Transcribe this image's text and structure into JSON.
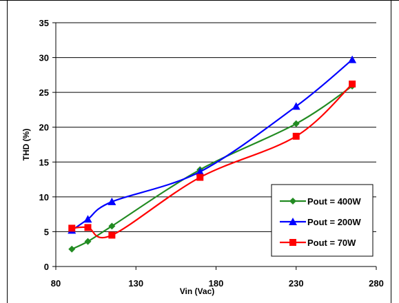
{
  "chart_data": {
    "type": "line",
    "title": "",
    "xlabel": "Vin (Vac)",
    "ylabel": "THD (%)",
    "xlim": [
      80,
      280
    ],
    "ylim": [
      0,
      35
    ],
    "xticks": [
      80,
      130,
      180,
      230,
      280
    ],
    "yticks": [
      0,
      5,
      10,
      15,
      20,
      25,
      30,
      35
    ],
    "grid": "horizontal",
    "legend_position": "bottom-right",
    "series": [
      {
        "name": "Pout = 400W",
        "color": "#228b22",
        "marker": "diamond",
        "x": [
          90,
          100,
          115,
          170,
          230,
          265
        ],
        "y": [
          2.5,
          3.6,
          5.8,
          13.9,
          20.5,
          25.9
        ]
      },
      {
        "name": "Pout = 200W",
        "color": "#0000ff",
        "marker": "triangle",
        "x": [
          90,
          100,
          115,
          170,
          230,
          265
        ],
        "y": [
          5.2,
          6.8,
          9.3,
          13.6,
          23.0,
          29.7
        ]
      },
      {
        "name": "Pout = 70W",
        "color": "#ff0000",
        "marker": "square",
        "x": [
          90,
          100,
          115,
          170,
          230,
          265
        ],
        "y": [
          5.5,
          5.6,
          4.5,
          12.8,
          18.7,
          26.2
        ]
      }
    ]
  }
}
